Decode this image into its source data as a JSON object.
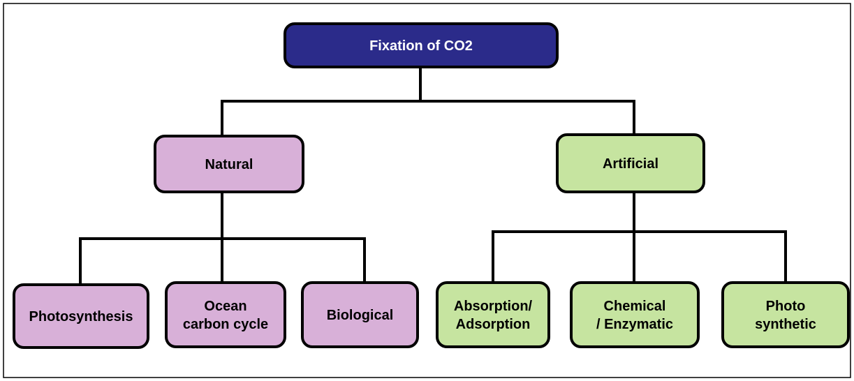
{
  "root": {
    "label": "Fixation of CO2"
  },
  "branches": [
    {
      "label": "Natural",
      "children": [
        {
          "label": "Photosynthesis"
        },
        {
          "label": "Ocean carbon cycle"
        },
        {
          "label": "Biological"
        }
      ]
    },
    {
      "label": "Artificial",
      "children": [
        {
          "label": "Absorption/ Adsorption"
        },
        {
          "label": "Chemical / Enzymatic"
        },
        {
          "label": "Photo synthetic"
        }
      ]
    }
  ]
}
